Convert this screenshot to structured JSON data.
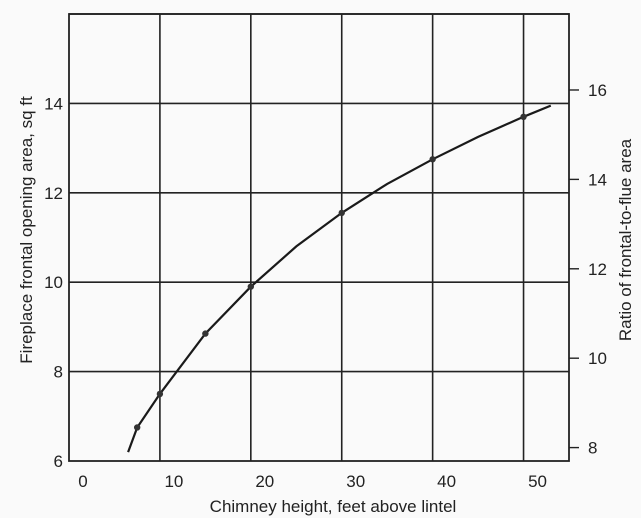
{
  "chart_data": {
    "type": "line",
    "xlabel": "Chimney height, feet above lintel",
    "ylabel": "Fireplace frontal opening area, sq ft",
    "y2label": "Ratio of frontal-to-flue area",
    "x_ticks": [
      "0",
      "10",
      "20",
      "30",
      "40",
      "50"
    ],
    "y_ticks": [
      "6",
      "8",
      "10",
      "12",
      "14"
    ],
    "y2_ticks": [
      "8",
      "10",
      "12",
      "14",
      "16"
    ],
    "xlim": [
      0,
      55
    ],
    "ylim": [
      6,
      16
    ],
    "y2_values": [
      8,
      10,
      12,
      14,
      16
    ],
    "y2_at_y": [
      6.3,
      8.3,
      10.3,
      12.3,
      14.3
    ],
    "grid": true,
    "series": [
      {
        "x": [
          6.5,
          7.5,
          10,
          15,
          20,
          25,
          30,
          35,
          40,
          45,
          50,
          53
        ],
        "y": [
          6.2,
          6.75,
          7.5,
          8.85,
          9.9,
          10.8,
          11.55,
          12.2,
          12.75,
          13.25,
          13.7,
          13.95
        ]
      }
    ],
    "markers_x": [
      7.5,
      10,
      15,
      20,
      30,
      40,
      50
    ]
  }
}
